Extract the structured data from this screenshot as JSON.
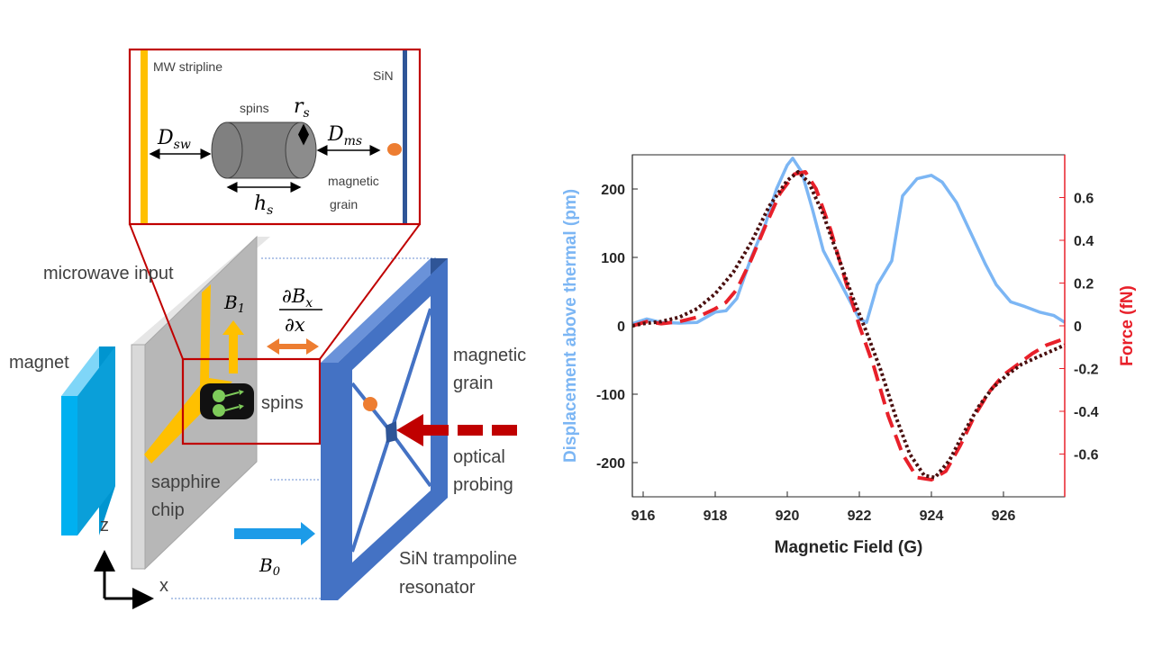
{
  "diagram": {
    "inset": {
      "mw_stripline": "MW stripline",
      "sin": "SiN",
      "spins": "spins",
      "magnetic": "magnetic",
      "grain": "grain",
      "r_s": "r",
      "r_s_sub": "s",
      "D_sw": "D",
      "D_sw_sub": "sw",
      "D_ms": "D",
      "D_ms_sub": "ms",
      "h_s": "h",
      "h_s_sub": "s"
    },
    "labels": {
      "microwave_input": "microwave input",
      "magnet": "magnet",
      "B1": "B",
      "B1_sub": "1",
      "grad_num_d": "∂",
      "grad_num_B": "B",
      "grad_num_sub": "x",
      "grad_den": "∂x",
      "spins": "spins",
      "magnetic": "magnetic",
      "grain": "grain",
      "optical": "optical",
      "probing": "probing",
      "sapphire": "sapphire",
      "chip": "chip",
      "B0": "B",
      "B0_sub": "0",
      "trampoline_1": "SiN trampoline",
      "trampoline_2": "resonator",
      "axis_z": "z",
      "axis_x": "x"
    },
    "colors": {
      "stripline": "#ffc000",
      "resonator": "#4472c4",
      "magnet": "#00b0f0",
      "inset_border": "#c00000",
      "grain": "#ed7d31",
      "probe_arrow": "#c00000",
      "b1_arrow": "#ffc000",
      "b0_arrow": "#1c9be8",
      "gradient_arrow": "#ed7d31"
    }
  },
  "chart_data": {
    "type": "line",
    "xlabel": "Magnetic Field (G)",
    "ylabel": "Displacement above thermal (pm)",
    "ylabel_right": "Force (fN)",
    "xlim": [
      915.7,
      927.7
    ],
    "ylim": [
      -250,
      250
    ],
    "ylim_right": [
      -0.8,
      0.8
    ],
    "xticks": [
      "916",
      "918",
      "920",
      "922",
      "924",
      "926"
    ],
    "yticks": [
      "-200",
      "-100",
      "0",
      "100",
      "200"
    ],
    "yticks_right": [
      "-0.6",
      "-0.4",
      "-0.2",
      "0",
      "0.2",
      "0.4",
      "0.6"
    ],
    "series": [
      {
        "axis": "left",
        "color": "#7cb6f4",
        "style": "solid",
        "x": [
          915.7,
          916.1,
          916.5,
          917.0,
          917.5,
          918.0,
          918.3,
          918.6,
          919.0,
          919.4,
          919.7,
          920.0,
          920.15,
          920.4,
          920.7,
          921.0,
          921.4,
          921.8,
          922.0,
          922.2,
          922.5,
          922.9,
          923.2,
          923.6,
          924.0,
          924.3,
          924.7,
          925.1,
          925.5,
          925.8,
          926.2,
          926.6,
          927.0,
          927.4,
          927.7
        ],
        "y": [
          3,
          10,
          5,
          4,
          5,
          20,
          22,
          40,
          100,
          150,
          200,
          235,
          245,
          225,
          170,
          110,
          70,
          30,
          10,
          5,
          60,
          95,
          190,
          215,
          220,
          210,
          180,
          135,
          90,
          60,
          35,
          28,
          20,
          15,
          5
        ]
      },
      {
        "axis": "right",
        "color": "#e8202a",
        "style": "dashed",
        "x": [
          915.7,
          916.1,
          916.5,
          917.0,
          917.5,
          918.0,
          918.3,
          918.6,
          919.0,
          919.4,
          919.8,
          920.2,
          920.5,
          920.8,
          921.2,
          921.6,
          922.0,
          922.4,
          922.8,
          923.2,
          923.6,
          924.0,
          924.4,
          924.8,
          925.2,
          925.6,
          926.0,
          926.4,
          926.8,
          927.2,
          927.7
        ],
        "y": [
          0.0,
          0.02,
          0.01,
          0.02,
          0.04,
          0.08,
          0.11,
          0.17,
          0.31,
          0.47,
          0.62,
          0.71,
          0.72,
          0.64,
          0.45,
          0.22,
          0.0,
          -0.19,
          -0.42,
          -0.6,
          -0.71,
          -0.72,
          -0.68,
          -0.56,
          -0.42,
          -0.31,
          -0.23,
          -0.18,
          -0.13,
          -0.09,
          -0.06
        ]
      },
      {
        "axis": "right",
        "color": "#4a0f0f",
        "style": "dotted",
        "x": [
          915.7,
          916.0,
          916.5,
          917.0,
          917.5,
          918.0,
          918.5,
          919.0,
          919.5,
          920.0,
          920.3,
          920.6,
          921.0,
          921.4,
          921.8,
          922.2,
          922.6,
          923.0,
          923.4,
          923.8,
          924.1,
          924.5,
          924.9,
          925.3,
          925.7,
          926.1,
          926.5,
          926.9,
          927.3,
          927.7
        ],
        "y": [
          0.0,
          0.01,
          0.02,
          0.04,
          0.08,
          0.15,
          0.25,
          0.39,
          0.56,
          0.68,
          0.72,
          0.67,
          0.52,
          0.33,
          0.14,
          -0.03,
          -0.21,
          -0.42,
          -0.6,
          -0.7,
          -0.71,
          -0.63,
          -0.5,
          -0.38,
          -0.29,
          -0.23,
          -0.18,
          -0.15,
          -0.12,
          -0.09
        ]
      }
    ]
  }
}
